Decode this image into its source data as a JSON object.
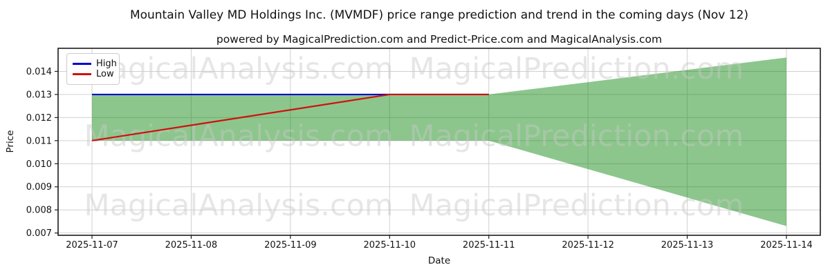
{
  "chart_data": {
    "type": "area",
    "title": "Mountain Valley MD Holdings Inc. (MVMDF) price range prediction and trend in the coming days (Nov 12)",
    "subtitle": "powered by MagicalPrediction.com and Predict-Price.com and MagicalAnalysis.com",
    "xlabel": "Date",
    "ylabel": "Price",
    "x_categories": [
      "2025-11-07",
      "2025-11-08",
      "2025-11-09",
      "2025-11-10",
      "2025-11-11",
      "2025-11-12",
      "2025-11-13",
      "2025-11-14"
    ],
    "y_ticks": [
      0.007,
      0.008,
      0.009,
      0.01,
      0.011,
      0.012,
      0.013,
      0.014
    ],
    "ylim": [
      0.0069,
      0.015
    ],
    "grid": true,
    "legend_position": "upper-left",
    "series": [
      {
        "name": "High",
        "color": "#0000d0",
        "values": [
          0.013,
          0.013,
          0.013,
          0.013,
          0.013,
          null,
          null,
          null
        ]
      },
      {
        "name": "Low",
        "color": "#d01010",
        "values": [
          0.011,
          0.011667,
          0.012333,
          0.013,
          0.013,
          null,
          null,
          null
        ]
      }
    ],
    "band": {
      "name": "prediction-range",
      "color": "rgba(0,128,0,0.45)",
      "upper": [
        0.013,
        0.013,
        0.013,
        0.013,
        0.013,
        0.013533,
        0.014067,
        0.0146
      ],
      "lower": [
        0.011,
        0.011,
        0.011,
        0.011,
        0.011,
        0.009767,
        0.008533,
        0.0073
      ]
    },
    "watermark": {
      "left_text": "MagicalAnalysis.com",
      "right_text": "MagicalPrediction.com",
      "rows": 3,
      "color": "rgba(200,200,200,0.45)"
    },
    "colors": {
      "grid": "#d0d0d0",
      "spine": "#1a1a1a",
      "text": "#111111"
    }
  }
}
